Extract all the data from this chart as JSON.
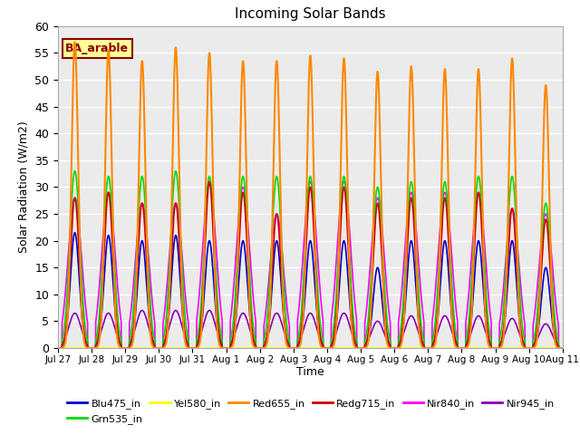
{
  "title": "Incoming Solar Bands",
  "xlabel": "Time",
  "ylabel": "Solar Radiation (W/m2)",
  "annotation": "BA_arable",
  "ylim": [
    0,
    60
  ],
  "background_color": "#ebebeb",
  "series": {
    "Blu475_in": {
      "color": "#0000cc",
      "lw": 1.2
    },
    "Grn535_in": {
      "color": "#00dd00",
      "lw": 1.2
    },
    "Yel580_in": {
      "color": "#ffff00",
      "lw": 1.2
    },
    "Red655_in": {
      "color": "#ff8800",
      "lw": 1.5
    },
    "Redg715_in": {
      "color": "#cc0000",
      "lw": 1.2
    },
    "Nir840_in": {
      "color": "#ff00ff",
      "lw": 1.2
    },
    "Nir945_in": {
      "color": "#8800bb",
      "lw": 1.2
    }
  },
  "peaks": [
    {
      "day": 0,
      "blu": 21.5,
      "grn": 33,
      "red655": 57,
      "redg": 28,
      "nir840": 28,
      "nir945": 6.5
    },
    {
      "day": 1,
      "blu": 21,
      "grn": 32,
      "red655": 55.5,
      "redg": 29,
      "nir840": 29,
      "nir945": 6.5
    },
    {
      "day": 2,
      "blu": 20,
      "grn": 32,
      "red655": 53.5,
      "redg": 27,
      "nir840": 27,
      "nir945": 7
    },
    {
      "day": 3,
      "blu": 21,
      "grn": 33,
      "red655": 56,
      "redg": 27,
      "nir840": 27,
      "nir945": 7
    },
    {
      "day": 4,
      "blu": 20,
      "grn": 32,
      "red655": 55,
      "redg": 31,
      "nir840": 31,
      "nir945": 7
    },
    {
      "day": 5,
      "blu": 20,
      "grn": 32,
      "red655": 53.5,
      "redg": 29,
      "nir840": 30,
      "nir945": 6.5
    },
    {
      "day": 6,
      "blu": 20,
      "grn": 32,
      "red655": 53.5,
      "redg": 25,
      "nir840": 25,
      "nir945": 6.5
    },
    {
      "day": 7,
      "blu": 20,
      "grn": 32,
      "red655": 54.5,
      "redg": 30,
      "nir840": 31,
      "nir945": 6.5
    },
    {
      "day": 8,
      "blu": 20,
      "grn": 32,
      "red655": 54,
      "redg": 30,
      "nir840": 31,
      "nir945": 6.5
    },
    {
      "day": 9,
      "blu": 15,
      "grn": 30,
      "red655": 51.5,
      "redg": 27,
      "nir840": 28,
      "nir945": 5
    },
    {
      "day": 10,
      "blu": 20,
      "grn": 31,
      "red655": 52.5,
      "redg": 28,
      "nir840": 29,
      "nir945": 6
    },
    {
      "day": 11,
      "blu": 20,
      "grn": 31,
      "red655": 52,
      "redg": 28,
      "nir840": 29,
      "nir945": 6
    },
    {
      "day": 12,
      "blu": 20,
      "grn": 32,
      "red655": 52,
      "redg": 29,
      "nir840": 29,
      "nir945": 6
    },
    {
      "day": 13,
      "blu": 20,
      "grn": 32,
      "red655": 54,
      "redg": 26,
      "nir840": 26,
      "nir945": 5.5
    },
    {
      "day": 14,
      "blu": 15,
      "grn": 27,
      "red655": 49,
      "redg": 24,
      "nir840": 25,
      "nir945": 4.5
    }
  ],
  "xtick_labels": [
    "Jul 27",
    "Jul 28",
    "Jul 29",
    "Jul 30",
    "Jul 31",
    "Aug 1",
    "Aug 2",
    "Aug 3",
    "Aug 4",
    "Aug 5",
    "Aug 6",
    "Aug 7",
    "Aug 8",
    "Aug 9",
    "Aug 10",
    "Aug 11"
  ],
  "yticks": [
    0,
    5,
    10,
    15,
    20,
    25,
    30,
    35,
    40,
    45,
    50,
    55,
    60
  ]
}
